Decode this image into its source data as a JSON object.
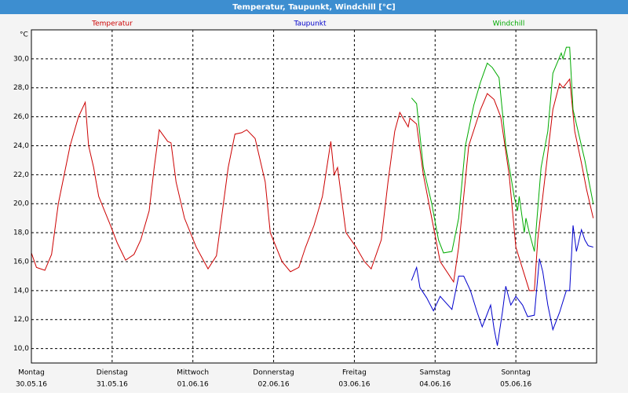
{
  "chart_data": {
    "type": "line",
    "title": "Temperatur, Taupunkt, Windchill [°C]",
    "y_label": "°C",
    "xlim": [
      0,
      168
    ],
    "xticks": [
      {
        "value": 0,
        "label": "Montag"
      },
      {
        "value": 24,
        "label": "Dienstag"
      },
      {
        "value": 48,
        "label": "Mittwoch"
      },
      {
        "value": 72,
        "label": "Donnerstag"
      },
      {
        "value": 96,
        "label": "Freitag"
      },
      {
        "value": 120,
        "label": "Samstag"
      },
      {
        "value": 144,
        "label": "Sonntag"
      }
    ],
    "xtick_dates": [
      "30.05.16",
      "31.05.16",
      "01.06.16",
      "02.06.16",
      "03.06.16",
      "04.06.16",
      "05.06.16"
    ],
    "ylim": [
      9,
      32
    ],
    "yticks": [
      {
        "value": 10,
        "label": "10,0"
      },
      {
        "value": 12,
        "label": "12,0"
      },
      {
        "value": 14,
        "label": "14,0"
      },
      {
        "value": 16,
        "label": "16,0"
      },
      {
        "value": 18,
        "label": "18,0"
      },
      {
        "value": 20,
        "label": "20,0"
      },
      {
        "value": 22,
        "label": "22,0"
      },
      {
        "value": 24,
        "label": "24,0"
      },
      {
        "value": 26,
        "label": "26,0"
      },
      {
        "value": 28,
        "label": "28,0"
      },
      {
        "value": 30,
        "label": "30,0"
      }
    ],
    "grid": true,
    "series": [
      {
        "name": "Temperatur",
        "color": "#cc0000",
        "x": [
          0,
          1.5,
          4,
          6,
          8,
          11.5,
          14,
          16,
          17,
          18.5,
          20,
          23.5,
          25.5,
          28,
          30.5,
          32.5,
          35,
          36.5,
          38,
          40.5,
          41.5,
          43,
          45.5,
          49,
          52.5,
          55,
          56.5,
          58.5,
          60.5,
          62.5,
          64,
          66.5,
          69.5,
          71,
          74.5,
          77,
          79.5,
          81.5,
          84,
          86.5,
          89,
          90,
          91,
          93.5,
          96.5,
          99,
          101,
          104,
          106,
          108,
          109.5,
          112,
          112.5,
          114.5,
          116.5,
          119,
          121.5,
          125.5,
          127,
          130,
          133.5,
          135.5,
          137.5,
          139.5,
          142,
          144,
          148,
          149.5,
          150.5,
          153,
          155,
          157,
          158,
          160,
          161.5,
          163.5,
          165,
          167
        ],
        "values": [
          16.6,
          15.6,
          15.4,
          16.5,
          20,
          24,
          26,
          27,
          24,
          22.5,
          20.5,
          18.5,
          17.3,
          16.1,
          16.5,
          17.5,
          19.5,
          22.5,
          25.1,
          24.3,
          24.2,
          21.5,
          19,
          17,
          15.5,
          16.4,
          19,
          22.5,
          24.8,
          24.9,
          25.1,
          24.5,
          21.5,
          18,
          16,
          15.3,
          15.6,
          17,
          18.5,
          20.5,
          24.3,
          22,
          22.5,
          18,
          17,
          16,
          15.5,
          17.5,
          21.5,
          25,
          26.3,
          25.3,
          25.9,
          25.5,
          22,
          19,
          16,
          14.6,
          17,
          24,
          26.5,
          27.6,
          27.2,
          26,
          22,
          17,
          14,
          14,
          17.5,
          22.5,
          26.5,
          28.3,
          28,
          28.6,
          25,
          22.8,
          21,
          19
        ]
      },
      {
        "name": "Taupunkt",
        "color": "#0000cc",
        "x": [
          113,
          114.5,
          115.5,
          117.5,
          119.5,
          121.5,
          125,
          127,
          128.5,
          130.5,
          132.5,
          134,
          136.5,
          137.5,
          138.5,
          140,
          141,
          142.5,
          144,
          146,
          147.5,
          149.5,
          151,
          152,
          153.5,
          155,
          157,
          159,
          160,
          161,
          162,
          163.5,
          164.5,
          165.5,
          167
        ],
        "values": [
          14.7,
          15.6,
          14.2,
          13.5,
          12.6,
          13.6,
          12.7,
          15,
          15,
          14,
          12.5,
          11.5,
          13,
          11.4,
          10.2,
          12.5,
          14.3,
          13,
          13.6,
          13,
          12.2,
          12.3,
          16.2,
          15.3,
          13,
          11.3,
          12.5,
          14,
          14,
          18.5,
          16.7,
          18.2,
          17.5,
          17.1,
          17
        ]
      },
      {
        "name": "Windchill",
        "color": "#00aa00",
        "x": [
          113,
          114.5,
          116.5,
          119,
          121,
          122.5,
          125,
          127,
          129,
          131.5,
          133.5,
          135.5,
          137,
          139,
          141,
          143.5,
          144.5,
          145,
          146.5,
          147,
          148,
          149.5,
          151.5,
          153.5,
          155,
          157.5,
          158,
          159,
          160,
          161,
          162,
          163.5,
          164.5,
          167
        ],
        "values": [
          27.3,
          26.9,
          22.5,
          20,
          17.5,
          16.6,
          16.7,
          19,
          24,
          26.8,
          28.4,
          29.7,
          29.4,
          28.7,
          24,
          20.5,
          19.5,
          20.5,
          18,
          19,
          18,
          16.7,
          22.5,
          25,
          29,
          30.4,
          30,
          30.8,
          30.8,
          26.5,
          25.5,
          24,
          23,
          20
        ]
      }
    ]
  }
}
